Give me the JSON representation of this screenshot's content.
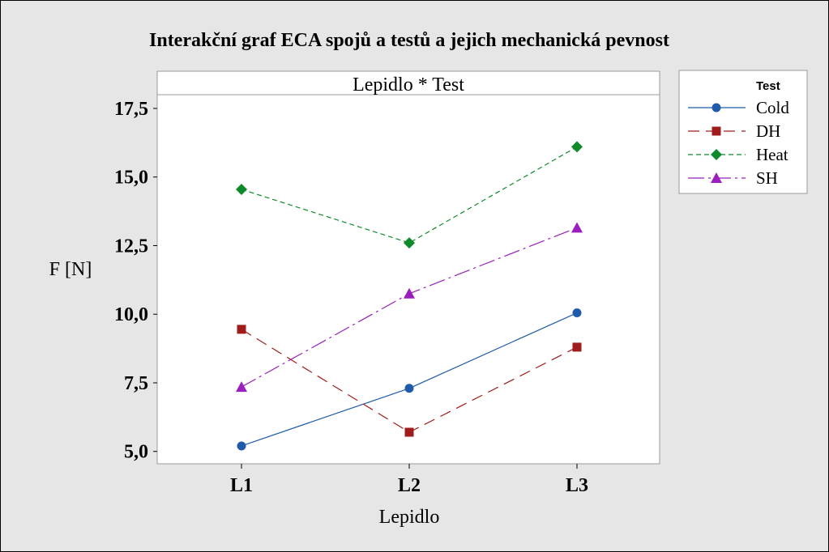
{
  "chart_data": {
    "type": "line",
    "title": "Interakční graf ECA spojů a testů a jejich mechanická pevnost",
    "panel_title": "Lepidlo * Test",
    "xlabel": "Lepidlo",
    "ylabel": "F [N]",
    "categories": [
      "L1",
      "L2",
      "L3"
    ],
    "ylim": [
      4.55,
      18.0
    ],
    "yticks": [
      5.0,
      7.5,
      10.0,
      12.5,
      15.0,
      17.5
    ],
    "ytick_labels": [
      "5,0",
      "7,5",
      "10,0",
      "12,5",
      "15,0",
      "17,5"
    ],
    "grid": false,
    "legend_position": "right",
    "legend_title": "Test",
    "series": [
      {
        "name": "Cold",
        "values": [
          5.2,
          7.3,
          10.05
        ],
        "color": "#1f5ba8",
        "marker": "circle",
        "dash": ""
      },
      {
        "name": "DH",
        "values": [
          9.45,
          5.7,
          8.8
        ],
        "color": "#a01c1c",
        "marker": "square",
        "dash": "14 8"
      },
      {
        "name": "Heat",
        "values": [
          14.55,
          12.6,
          16.1
        ],
        "color": "#0e8a2a",
        "marker": "diamond",
        "dash": "6 4"
      },
      {
        "name": "SH",
        "values": [
          7.35,
          10.75,
          13.15
        ],
        "color": "#9a1fbd",
        "marker": "triangle",
        "dash": "20 5 3 5"
      }
    ]
  }
}
